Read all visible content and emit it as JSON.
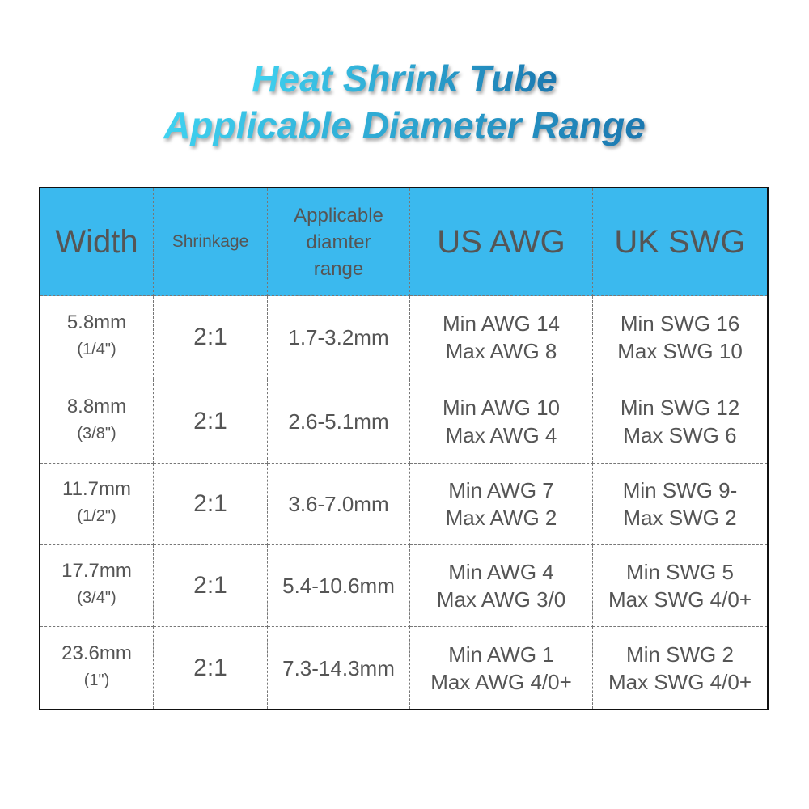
{
  "header": {
    "title": [
      "Heat Shrink Tube",
      "Applicable Diameter Range"
    ]
  },
  "table": {
    "columns": [
      [
        "Width"
      ],
      [
        "Shrinkage"
      ],
      [
        "Applicable",
        "diamter",
        "range"
      ],
      [
        "US AWG"
      ],
      [
        "UK SWG"
      ]
    ],
    "rows": [
      [
        [
          "5.8mm",
          "(1/4\")"
        ],
        [
          "2:1"
        ],
        [
          "1.7-3.2mm"
        ],
        [
          "Min AWG 14",
          "Max AWG 8"
        ],
        [
          "Min SWG 16",
          "Max SWG 10"
        ]
      ],
      [
        [
          "8.8mm",
          "(3/8\")"
        ],
        [
          "2:1"
        ],
        [
          "2.6-5.1mm"
        ],
        [
          "Min AWG 10",
          "Max AWG 4"
        ],
        [
          "Min SWG 12",
          "Max SWG 6"
        ]
      ],
      [
        [
          "11.7mm",
          "(1/2\")"
        ],
        [
          "2:1"
        ],
        [
          "3.6-7.0mm"
        ],
        [
          "Min AWG 7",
          "Max AWG 2"
        ],
        [
          "Min SWG 9-",
          "Max SWG 2"
        ]
      ],
      [
        [
          "17.7mm",
          "(3/4\")"
        ],
        [
          "2:1"
        ],
        [
          "5.4-10.6mm"
        ],
        [
          "Min AWG 4",
          "Max AWG 3/0"
        ],
        [
          "Min SWG 5",
          "Max SWG 4/0+"
        ]
      ],
      [
        [
          "23.6mm",
          "(1\")"
        ],
        [
          "2:1"
        ],
        [
          "7.3-14.3mm"
        ],
        [
          "Min AWG 1",
          "Max AWG 4/0+"
        ],
        [
          "Min SWG 2",
          "Max SWG 4/0+"
        ]
      ]
    ]
  }
}
